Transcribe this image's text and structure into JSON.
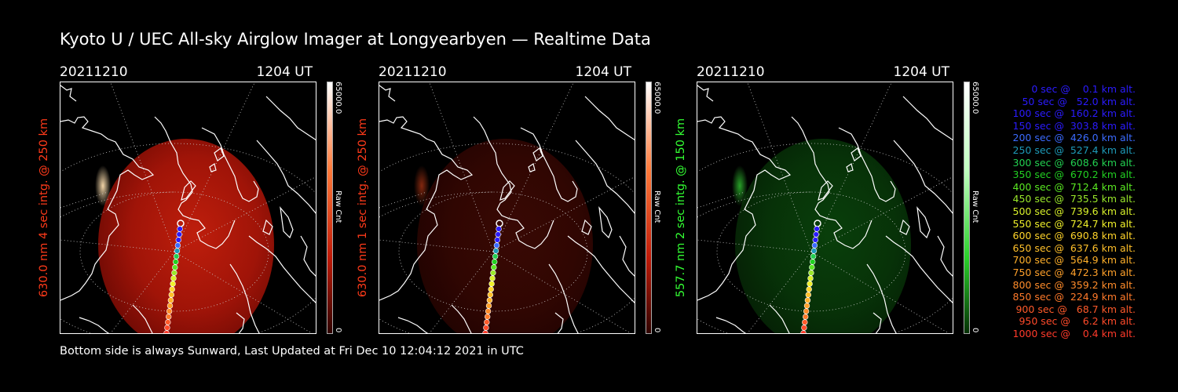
{
  "title": "Kyoto U / UEC All-sky Airglow Imager at Longyearbyen — Realtime Data",
  "footer": "Bottom side is always Sunward, Last Updated at Fri Dec 10 12:04:12 2021 in UTC",
  "panels": [
    {
      "date": "20211210",
      "time": "1204 UT",
      "label": "630.0 nm  4 sec intg. @ 250 km",
      "label_color": "#ff3a1a",
      "cb_max": "65000.0",
      "cb_min": "0",
      "cb_unit": "Raw Cnt",
      "tint": "red",
      "brightness": 1.0
    },
    {
      "date": "20211210",
      "time": "1204 UT",
      "label": "630.0 nm  1 sec intg. @ 250 km",
      "label_color": "#ff3a1a",
      "cb_max": "65000.0",
      "cb_min": "0",
      "cb_unit": "Raw Cnt",
      "tint": "red",
      "brightness": 0.3
    },
    {
      "date": "20211210",
      "time": "1204 UT",
      "label": "557.7 nm  2 sec intg. @ 150 km",
      "label_color": "#33ff33",
      "cb_max": "65000.0",
      "cb_min": "0",
      "cb_unit": "Raw Cnt",
      "tint": "green",
      "brightness": 0.45
    }
  ],
  "legend": [
    {
      "text": "  0 sec @    0.1 km alt.",
      "color": "#2b1bff"
    },
    {
      "text": " 50 sec @   52.0 km alt.",
      "color": "#2b1bff"
    },
    {
      "text": "100 sec @  160.2 km alt.",
      "color": "#2b1bff"
    },
    {
      "text": "150 sec @  303.8 km alt.",
      "color": "#2b1bff"
    },
    {
      "text": "200 sec @  426.0 km alt.",
      "color": "#3b6bff"
    },
    {
      "text": "250 sec @  527.4 km alt.",
      "color": "#1e9ab8"
    },
    {
      "text": "300 sec @  608.6 km alt.",
      "color": "#22d050"
    },
    {
      "text": "350 sec @  670.2 km alt.",
      "color": "#22d022"
    },
    {
      "text": "400 sec @  712.4 km alt.",
      "color": "#5ae822"
    },
    {
      "text": "450 sec @  735.5 km alt.",
      "color": "#9ae82a"
    },
    {
      "text": "500 sec @  739.6 km alt.",
      "color": "#d8f02a"
    },
    {
      "text": "550 sec @  724.7 km alt.",
      "color": "#f0f02a"
    },
    {
      "text": "600 sec @  690.8 km alt.",
      "color": "#ffd42a"
    },
    {
      "text": "650 sec @  637.6 km alt.",
      "color": "#ffc02a"
    },
    {
      "text": "700 sec @  564.9 km alt.",
      "color": "#ffb02a"
    },
    {
      "text": "750 sec @  472.3 km alt.",
      "color": "#ffa02a"
    },
    {
      "text": "800 sec @  359.2 km alt.",
      "color": "#ff8c2a"
    },
    {
      "text": "850 sec @  224.9 km alt.",
      "color": "#ff7a2a"
    },
    {
      "text": "900 sec @   68.7 km alt.",
      "color": "#ff5a2a"
    },
    {
      "text": "950 sec @    6.2 km alt.",
      "color": "#ff4a2a"
    },
    {
      "text": "1000 sec @    0.4 km alt.",
      "color": "#ff3a2a"
    }
  ]
}
